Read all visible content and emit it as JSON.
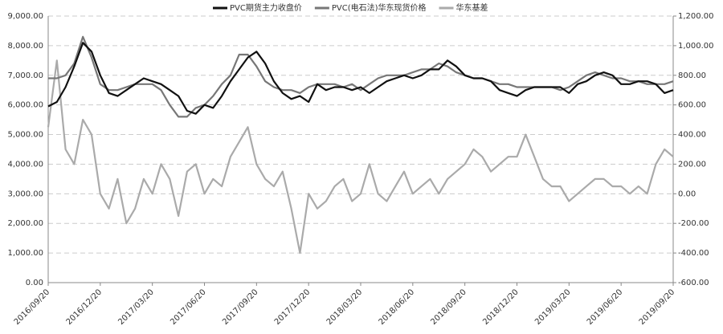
{
  "chart_data": {
    "type": "line",
    "categories": [
      "2016/09/20",
      null,
      null,
      null,
      null,
      null,
      "2016/12/20",
      null,
      null,
      null,
      null,
      null,
      "2017/03/20",
      null,
      null,
      null,
      null,
      null,
      "2017/06/20",
      null,
      null,
      null,
      null,
      null,
      "2017/09/20",
      null,
      null,
      null,
      null,
      null,
      "2017/12/20",
      null,
      null,
      null,
      null,
      null,
      "2018/03/20",
      null,
      null,
      null,
      null,
      null,
      "2018/06/20",
      null,
      null,
      null,
      null,
      null,
      "2018/09/20",
      null,
      null,
      null,
      null,
      null,
      "2018/12/20",
      null,
      null,
      null,
      null,
      null,
      "2019/03/20",
      null,
      null,
      null,
      null,
      null,
      "2019/06/20",
      null,
      null,
      null,
      null,
      null,
      "2019/09/20"
    ],
    "series": [
      {
        "name": "PVC期货主力收盘价",
        "color": "#111111",
        "values": [
          5950,
          6100,
          6600,
          7300,
          8100,
          7800,
          7000,
          6400,
          6300,
          6500,
          6700,
          6900,
          6800,
          6700,
          6500,
          6300,
          5800,
          5700,
          6000,
          5900,
          6300,
          6800,
          7200,
          7600,
          7800,
          7400,
          6800,
          6400,
          6200,
          6300,
          6100,
          6700,
          6500,
          6600,
          6600,
          6500,
          6600,
          6400,
          6600,
          6800,
          6900,
          7000,
          6900,
          7000,
          7200,
          7200,
          7500,
          7300,
          7000,
          6900,
          6900,
          6800,
          6500,
          6400,
          6300,
          6500,
          6600,
          6600,
          6600,
          6600,
          6400,
          6700,
          6800,
          7000,
          7100,
          7000,
          6700,
          6700,
          6800,
          6800,
          6700,
          6400,
          6500
        ]
      },
      {
        "name": "PVC(电石法)华东现货价格",
        "color": "#777777",
        "values": [
          6900,
          6900,
          7000,
          7400,
          8300,
          7600,
          6700,
          6500,
          6500,
          6600,
          6700,
          6700,
          6700,
          6500,
          6000,
          5600,
          5600,
          5900,
          6000,
          6300,
          6700,
          7000,
          7700,
          7700,
          7300,
          6800,
          6600,
          6500,
          6500,
          6400,
          6600,
          6700,
          6700,
          6700,
          6600,
          6700,
          6500,
          6700,
          6900,
          7000,
          7000,
          7000,
          7100,
          7200,
          7200,
          7400,
          7300,
          7100,
          7000,
          6900,
          6900,
          6800,
          6700,
          6700,
          6600,
          6600,
          6600,
          6600,
          6600,
          6500,
          6600,
          6800,
          7000,
          7100,
          7000,
          6900,
          6900,
          6800,
          6800,
          6700,
          6700,
          6700,
          6800
        ]
      },
      {
        "name": "华东基差",
        "color": "#aaaaaa",
        "axis": "y2",
        "values": [
          450,
          900,
          300,
          200,
          500,
          400,
          0,
          -100,
          100,
          -200,
          -100,
          100,
          0,
          200,
          100,
          -150,
          150,
          200,
          0,
          100,
          50,
          250,
          350,
          450,
          200,
          100,
          50,
          150,
          -100,
          -400,
          0,
          -100,
          -50,
          50,
          100,
          -50,
          0,
          200,
          0,
          -50,
          50,
          150,
          0,
          50,
          100,
          0,
          100,
          150,
          200,
          300,
          250,
          150,
          200,
          250,
          250,
          400,
          250,
          100,
          50,
          50,
          -50,
          0,
          50,
          100,
          100,
          50,
          50,
          0,
          50,
          0,
          200,
          300,
          250
        ]
      }
    ],
    "ylim": [
      0,
      9000
    ],
    "yticks": [
      {
        "value": 0,
        "label": "0.00"
      },
      {
        "value": 1000,
        "label": "1,000.00"
      },
      {
        "value": 2000,
        "label": "2,000.00"
      },
      {
        "value": 3000,
        "label": "3,000.00"
      },
      {
        "value": 4000,
        "label": "4,000.00"
      },
      {
        "value": 5000,
        "label": "5,000.00"
      },
      {
        "value": 6000,
        "label": "6,000.00"
      },
      {
        "value": 7000,
        "label": "7,000.00"
      },
      {
        "value": 8000,
        "label": "8,000.00"
      },
      {
        "value": 9000,
        "label": "9,000.00"
      }
    ],
    "y2lim": [
      -600,
      1200
    ],
    "y2ticks": [
      {
        "value": -600,
        "label": "-600.00"
      },
      {
        "value": -400,
        "label": "-400.00"
      },
      {
        "value": -200,
        "label": "-200.00"
      },
      {
        "value": 0,
        "label": "0.00"
      },
      {
        "value": 200,
        "label": "200.00"
      },
      {
        "value": 400,
        "label": "400.00"
      },
      {
        "value": 600,
        "label": "600.00"
      },
      {
        "value": 800,
        "label": "800.00"
      },
      {
        "value": 1000,
        "label": "1,000.00"
      },
      {
        "value": 1200,
        "label": "1,200.00"
      }
    ],
    "grid": true,
    "legend": "top"
  }
}
